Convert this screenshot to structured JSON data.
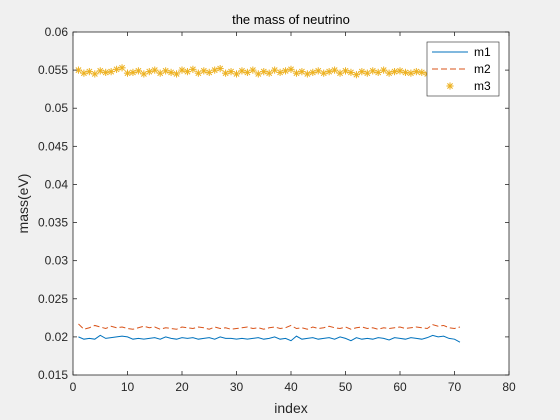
{
  "chart_data": {
    "type": "line",
    "title": "the mass of neutrino",
    "xlabel": "index",
    "ylabel": "mass(eV)",
    "xlim": [
      0,
      80
    ],
    "ylim": [
      0.015,
      0.06
    ],
    "xticks": [
      0,
      10,
      20,
      30,
      40,
      50,
      60,
      70,
      80
    ],
    "yticks": [
      0.015,
      0.02,
      0.025,
      0.03,
      0.035,
      0.04,
      0.045,
      0.05,
      0.055,
      0.06
    ],
    "ytick_labels": [
      "0.015",
      "0.02",
      "0.025",
      "0.03",
      "0.035",
      "0.04",
      "0.045",
      "0.05",
      "0.055",
      "0.06"
    ],
    "grid": false,
    "legend_position": "top-right",
    "x": [
      1,
      2,
      3,
      4,
      5,
      6,
      7,
      8,
      9,
      10,
      11,
      12,
      13,
      14,
      15,
      16,
      17,
      18,
      19,
      20,
      21,
      22,
      23,
      24,
      25,
      26,
      27,
      28,
      29,
      30,
      31,
      32,
      33,
      34,
      35,
      36,
      37,
      38,
      39,
      40,
      41,
      42,
      43,
      44,
      45,
      46,
      47,
      48,
      49,
      50,
      51,
      52,
      53,
      54,
      55,
      56,
      57,
      58,
      59,
      60,
      61,
      62,
      63,
      64,
      65,
      66,
      67,
      68,
      69,
      70,
      71
    ],
    "series": [
      {
        "name": "m1",
        "style": "solid",
        "color": "#0072bd",
        "values": [
          0.02,
          0.0197,
          0.0198,
          0.0197,
          0.0202,
          0.0198,
          0.0199,
          0.02,
          0.0201,
          0.02,
          0.0197,
          0.0198,
          0.0197,
          0.0198,
          0.0199,
          0.0197,
          0.02,
          0.0198,
          0.0197,
          0.0199,
          0.0198,
          0.0199,
          0.0197,
          0.0198,
          0.0199,
          0.0197,
          0.02,
          0.0198,
          0.0198,
          0.0197,
          0.0198,
          0.0197,
          0.0198,
          0.0199,
          0.0197,
          0.0198,
          0.02,
          0.0197,
          0.0198,
          0.0195,
          0.0201,
          0.0197,
          0.0198,
          0.0199,
          0.0197,
          0.0198,
          0.0199,
          0.0197,
          0.02,
          0.0198,
          0.0195,
          0.0199,
          0.0197,
          0.0198,
          0.0197,
          0.0199,
          0.0198,
          0.0196,
          0.0199,
          0.0198,
          0.0197,
          0.0199,
          0.0198,
          0.0197,
          0.0199,
          0.0202,
          0.02,
          0.0201,
          0.0198,
          0.0197,
          0.0193
        ]
      },
      {
        "name": "m2",
        "style": "dashed",
        "color": "#d95319",
        "values": [
          0.0217,
          0.021,
          0.0212,
          0.0215,
          0.0213,
          0.0211,
          0.0214,
          0.0212,
          0.0213,
          0.0211,
          0.021,
          0.0212,
          0.0214,
          0.0212,
          0.0213,
          0.021,
          0.0212,
          0.0211,
          0.021,
          0.0213,
          0.0212,
          0.0211,
          0.0213,
          0.0212,
          0.021,
          0.0213,
          0.0211,
          0.0212,
          0.021,
          0.0211,
          0.0212,
          0.0213,
          0.0211,
          0.0212,
          0.021,
          0.0212,
          0.0213,
          0.0211,
          0.0212,
          0.0215,
          0.0211,
          0.0212,
          0.021,
          0.0213,
          0.0211,
          0.0212,
          0.0214,
          0.0212,
          0.0211,
          0.0213,
          0.021,
          0.0212,
          0.0213,
          0.0211,
          0.0212,
          0.021,
          0.0212,
          0.0211,
          0.0212,
          0.0213,
          0.0211,
          0.0212,
          0.0213,
          0.0212,
          0.0211,
          0.0216,
          0.0214,
          0.0215,
          0.0212,
          0.0211,
          0.0213
        ]
      },
      {
        "name": "m3",
        "style": "asterisk",
        "color": "#edb120",
        "values": [
          0.055,
          0.0546,
          0.0548,
          0.0545,
          0.0549,
          0.0547,
          0.0548,
          0.0551,
          0.0553,
          0.0546,
          0.0547,
          0.0549,
          0.0545,
          0.0548,
          0.055,
          0.0546,
          0.0549,
          0.0547,
          0.0545,
          0.055,
          0.0548,
          0.0551,
          0.0546,
          0.0549,
          0.0547,
          0.055,
          0.0552,
          0.0546,
          0.0548,
          0.0545,
          0.0549,
          0.0547,
          0.055,
          0.0545,
          0.0548,
          0.0546,
          0.055,
          0.0547,
          0.0549,
          0.0551,
          0.0546,
          0.0548,
          0.0545,
          0.0547,
          0.0549,
          0.0546,
          0.0548,
          0.055,
          0.0546,
          0.0549,
          0.0547,
          0.0544,
          0.0548,
          0.0546,
          0.0549,
          0.0547,
          0.055,
          0.0546,
          0.0548,
          0.0549,
          0.0547,
          0.0546,
          0.0548,
          0.0547,
          0.0545,
          0.0549,
          0.0548,
          0.0551,
          0.0547,
          0.0549,
          0.0548
        ]
      }
    ]
  }
}
